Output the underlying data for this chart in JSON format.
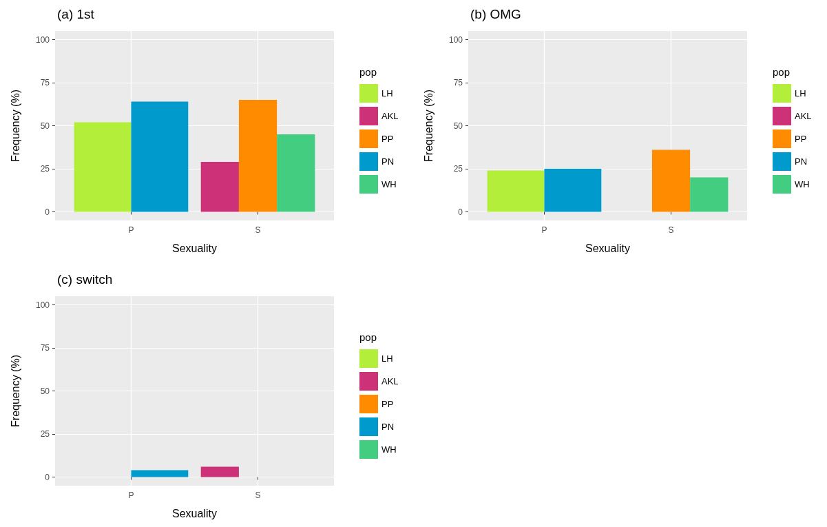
{
  "chart_data": [
    {
      "type": "bar",
      "title": "(a) 1st",
      "xlabel": "Sexuality",
      "ylabel": "Frequency (%)",
      "legend_title": "pop",
      "categories": [
        "P",
        "S"
      ],
      "ylim": [
        -5,
        105
      ],
      "yticks": [
        0,
        25,
        50,
        75,
        100
      ],
      "grid": true,
      "legend": "right",
      "series": [
        {
          "name": "LH",
          "color": "#b3ee3a",
          "values": [
            52,
            null
          ]
        },
        {
          "name": "AKL",
          "color": "#cd3278",
          "values": [
            null,
            29
          ]
        },
        {
          "name": "PP",
          "color": "#ff8c00",
          "values": [
            null,
            65
          ]
        },
        {
          "name": "PN",
          "color": "#009acd",
          "values": [
            64,
            null
          ]
        },
        {
          "name": "WH",
          "color": "#43cd80",
          "values": [
            null,
            45
          ]
        }
      ]
    },
    {
      "type": "bar",
      "title": "(b) OMG",
      "xlabel": "Sexuality",
      "ylabel": "Frequency (%)",
      "legend_title": "pop",
      "categories": [
        "P",
        "S"
      ],
      "ylim": [
        -5,
        105
      ],
      "yticks": [
        0,
        25,
        50,
        75,
        100
      ],
      "grid": true,
      "legend": "right",
      "series": [
        {
          "name": "LH",
          "color": "#b3ee3a",
          "values": [
            24,
            null
          ]
        },
        {
          "name": "AKL",
          "color": "#cd3278",
          "values": [
            null,
            0
          ]
        },
        {
          "name": "PP",
          "color": "#ff8c00",
          "values": [
            null,
            36
          ]
        },
        {
          "name": "PN",
          "color": "#009acd",
          "values": [
            25,
            null
          ]
        },
        {
          "name": "WH",
          "color": "#43cd80",
          "values": [
            null,
            20
          ]
        }
      ]
    },
    {
      "type": "bar",
      "title": "(c) switch",
      "xlabel": "Sexuality",
      "ylabel": "Frequency (%)",
      "legend_title": "pop",
      "categories": [
        "P",
        "S"
      ],
      "ylim": [
        -5,
        105
      ],
      "yticks": [
        0,
        25,
        50,
        75,
        100
      ],
      "grid": true,
      "legend": "right",
      "series": [
        {
          "name": "LH",
          "color": "#b3ee3a",
          "values": [
            0,
            null
          ]
        },
        {
          "name": "AKL",
          "color": "#cd3278",
          "values": [
            null,
            6
          ]
        },
        {
          "name": "PP",
          "color": "#ff8c00",
          "values": [
            null,
            0
          ]
        },
        {
          "name": "PN",
          "color": "#009acd",
          "values": [
            4,
            null
          ]
        },
        {
          "name": "WH",
          "color": "#43cd80",
          "values": [
            null,
            0
          ]
        }
      ]
    }
  ]
}
